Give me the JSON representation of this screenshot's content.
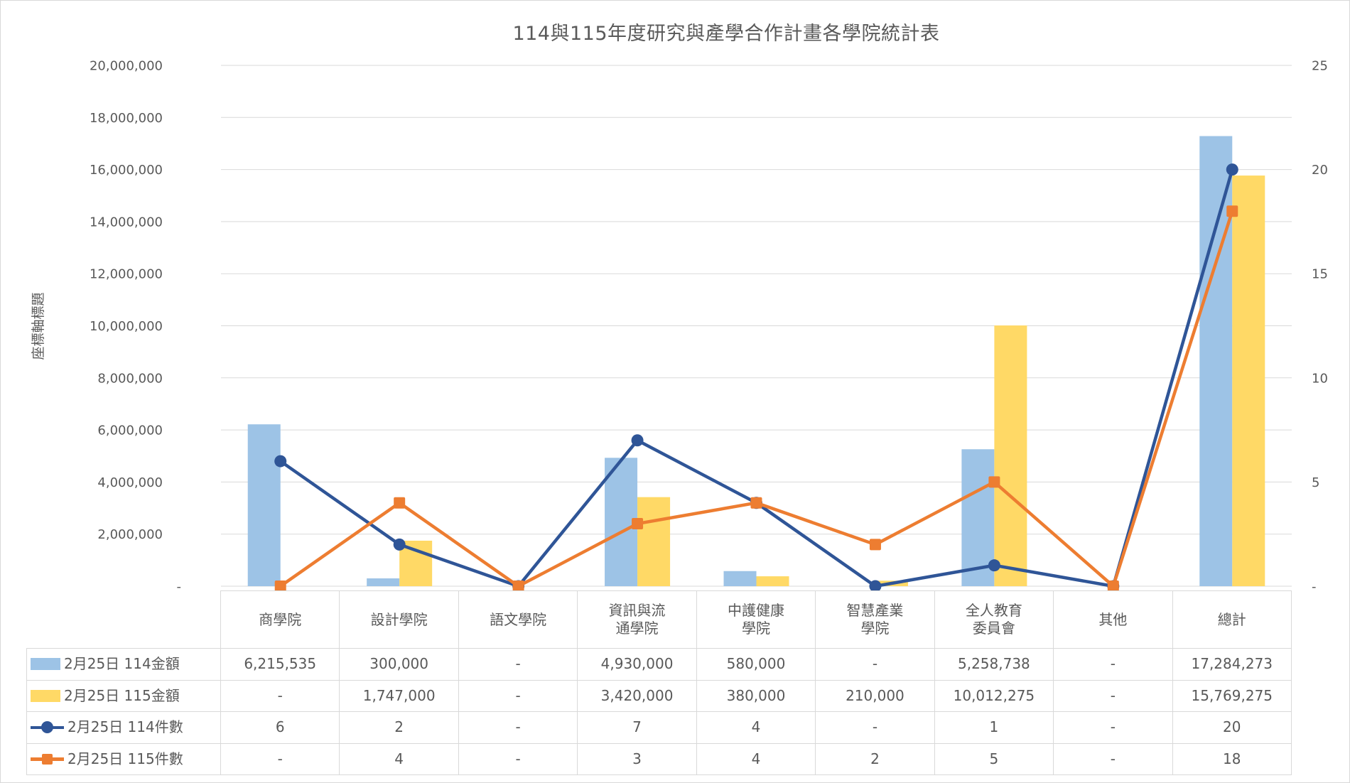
{
  "title": "114與115年度研究與產學合作計畫各學院統計表",
  "colors": {
    "bar_114": "#9DC3E6",
    "bar_115": "#FFD966",
    "line_114": "#2F5597",
    "line_115": "#ED7D31",
    "gridline": "#D9D9D9",
    "table_border": "#D9D9D9",
    "text": "#595959"
  },
  "chart_data": {
    "type": "combo-bar-line",
    "title": "114與115年度研究與產學合作計畫各學院統計表",
    "categories": [
      "商學院",
      "設計學院",
      "語文學院",
      "資訊與流通學院",
      "中護健康學院",
      "智慧產業學院",
      "全人教育委員會",
      "其他",
      "總計"
    ],
    "series": [
      {
        "id": "amount-114",
        "name": "2月25日 114金額",
        "type": "bar",
        "axis": "left",
        "color": "#9DC3E6",
        "values": [
          6215535,
          300000,
          null,
          4930000,
          580000,
          null,
          5258738,
          null,
          17284273
        ]
      },
      {
        "id": "amount-115",
        "name": "2月25日 115金額",
        "type": "bar",
        "axis": "left",
        "color": "#FFD966",
        "values": [
          null,
          1747000,
          null,
          3420000,
          380000,
          210000,
          10012275,
          null,
          15769275
        ]
      },
      {
        "id": "count-114",
        "name": "2月25日 114件數",
        "type": "line",
        "axis": "right",
        "color": "#2F5597",
        "marker": "circle",
        "values": [
          6,
          2,
          null,
          7,
          4,
          null,
          1,
          null,
          20
        ]
      },
      {
        "id": "count-115",
        "name": "2月25日 115件數",
        "type": "line",
        "axis": "right",
        "color": "#ED7D31",
        "marker": "square",
        "values": [
          null,
          4,
          null,
          3,
          4,
          2,
          5,
          null,
          18
        ]
      }
    ],
    "left_axis": {
      "title": "座標軸標題",
      "min": 0,
      "max": 20000000,
      "gridline_step": 2000000,
      "tick_labels": [
        "-",
        "2,000,000",
        "4,000,000",
        "6,000,000",
        "8,000,000",
        "10,000,000",
        "12,000,000",
        "14,000,000",
        "16,000,000",
        "18,000,000",
        "20,000,000"
      ]
    },
    "right_axis": {
      "min": 0,
      "max": 25,
      "label_step": 5,
      "tick_labels": [
        "-",
        "5",
        "10",
        "15",
        "20",
        "25"
      ]
    },
    "grid": "horizontal",
    "legend_position": "data-table-left",
    "zero_display": "-"
  }
}
